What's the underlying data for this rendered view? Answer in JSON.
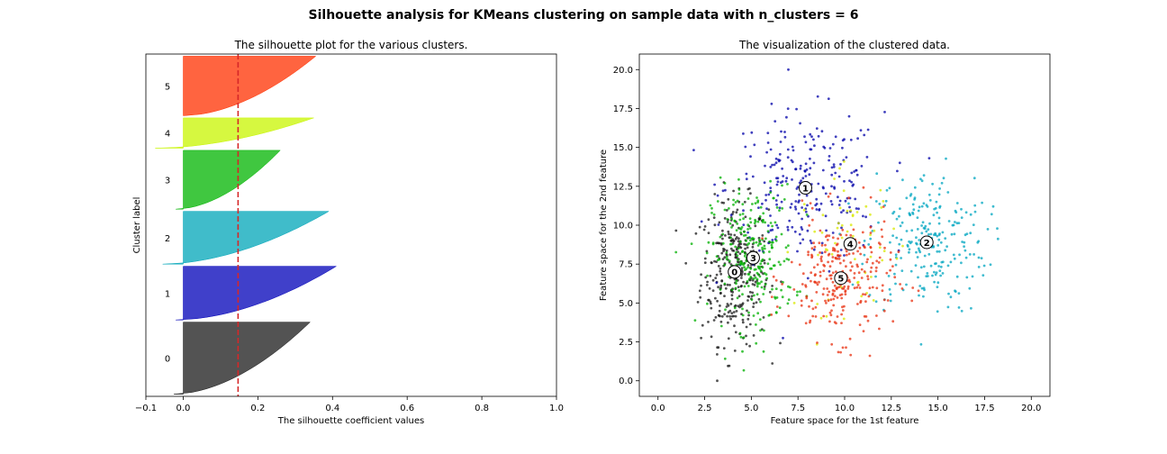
{
  "figure": {
    "suptitle": "Silhouette analysis for KMeans clustering on sample data with n_clusters = 6"
  },
  "chart_data": [
    {
      "type": "silhouette",
      "title": "The silhouette plot for the various clusters.",
      "xlabel": "The silhouette coefficient values",
      "ylabel": "Cluster label",
      "xlim": [
        -0.1,
        1.0
      ],
      "xticks": [
        "−0.1",
        "0.0",
        "0.2",
        "0.4",
        "0.6",
        "0.8",
        "1.0"
      ],
      "xtick_values": [
        -0.1,
        0.0,
        0.2,
        0.4,
        0.6,
        0.8,
        1.0
      ],
      "average_silhouette": 0.147,
      "average_line_color": "#d62728",
      "clusters": [
        {
          "label": "0",
          "color": "#1a1a1a",
          "size": 333,
          "max": 0.34,
          "min": -0.025
        },
        {
          "label": "1",
          "color": "#0000b8",
          "size": 248,
          "max": 0.41,
          "min": -0.02
        },
        {
          "label": "2",
          "color": "#00a5b8",
          "size": 244,
          "max": 0.39,
          "min": -0.055
        },
        {
          "label": "3",
          "color": "#00b400",
          "size": 272,
          "max": 0.26,
          "min": -0.02
        },
        {
          "label": "4",
          "color": "#c8f500",
          "size": 140,
          "max": 0.35,
          "min": -0.075
        },
        {
          "label": "5",
          "color": "#ff3000",
          "size": 275,
          "max": 0.355,
          "min": 0.0
        }
      ]
    },
    {
      "type": "scatter",
      "title": "The visualization of the clustered data.",
      "xlabel": "Feature space for the 1st feature",
      "ylabel": "Feature space for the 2nd feature",
      "xlim": [
        -1.0,
        21.0
      ],
      "ylim": [
        -1.0,
        21.0
      ],
      "xticks": [
        "0.0",
        "2.5",
        "5.0",
        "7.5",
        "10.0",
        "12.5",
        "15.0",
        "17.5",
        "20.0"
      ],
      "xtick_values": [
        0,
        2.5,
        5,
        7.5,
        10,
        12.5,
        15,
        17.5,
        20
      ],
      "yticks": [
        "0.0",
        "2.5",
        "5.0",
        "7.5",
        "10.0",
        "12.5",
        "15.0",
        "17.5",
        "20.0"
      ],
      "ytick_values": [
        0,
        2.5,
        5,
        7.5,
        10,
        12.5,
        15,
        17.5,
        20
      ],
      "clusters": [
        {
          "label": "0",
          "color": "#1a1a1a",
          "center": [
            4.1,
            7.0
          ],
          "sx": 0.9,
          "sy": 2.3,
          "n": 330
        },
        {
          "label": "1",
          "color": "#0000a8",
          "center": [
            7.9,
            12.4
          ],
          "sx": 2.1,
          "sy": 2.4,
          "n": 250
        },
        {
          "label": "2",
          "color": "#00a5c0",
          "center": [
            14.4,
            8.9
          ],
          "sx": 1.6,
          "sy": 2.3,
          "n": 240
        },
        {
          "label": "3",
          "color": "#00b000",
          "center": [
            5.1,
            7.9
          ],
          "sx": 1.1,
          "sy": 2.3,
          "n": 270
        },
        {
          "label": "4",
          "color": "#d8e800",
          "center": [
            10.3,
            8.8
          ],
          "sx": 1.4,
          "sy": 2.2,
          "n": 60
        },
        {
          "label": "5",
          "color": "#e83010",
          "center": [
            9.8,
            6.6
          ],
          "sx": 1.4,
          "sy": 2.0,
          "n": 270
        }
      ]
    }
  ]
}
